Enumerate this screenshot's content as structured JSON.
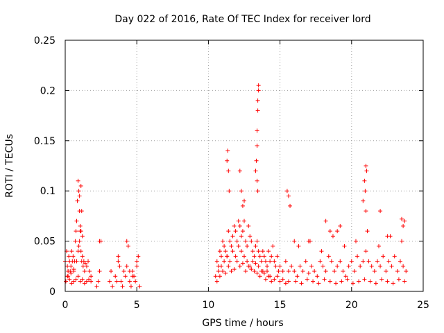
{
  "chart_data": {
    "type": "scatter",
    "title": "Day 022 of 2016, Rate Of TEC Index for receiver lord",
    "xlabel": "GPS time / hours",
    "ylabel": "ROTI / TECUs",
    "xlim": [
      0,
      25
    ],
    "ylim": [
      0,
      0.25
    ],
    "xticks": [
      0,
      5,
      10,
      15,
      20,
      25
    ],
    "xtick_labels": [
      "0",
      "5",
      "10",
      "15",
      "20",
      "25"
    ],
    "yticks": [
      0,
      0.05,
      0.1,
      0.15,
      0.2,
      0.25
    ],
    "ytick_labels": [
      "0",
      "0.05",
      "0.1",
      "0.15",
      "0.2",
      "0.25"
    ],
    "grid": true,
    "marker": "+",
    "series": [
      {
        "name": "ROTI",
        "color": "#ff0000",
        "x": [
          0.0,
          0.1,
          0.15,
          0.2,
          0.25,
          0.3,
          0.35,
          0.4,
          0.45,
          0.5,
          0.55,
          0.6,
          0.65,
          0.7,
          0.75,
          0.8,
          0.85,
          0.9,
          0.95,
          1.0,
          1.05,
          1.1,
          1.15,
          1.2,
          1.25,
          1.3,
          1.35,
          1.4,
          1.5,
          1.6,
          1.7,
          1.8,
          0.05,
          0.15,
          0.3,
          0.45,
          0.6,
          0.75,
          0.9,
          1.05,
          1.2,
          1.35,
          1.5,
          1.65,
          1.8,
          0.2,
          0.4,
          0.6,
          0.8,
          0.95,
          1.0,
          1.05,
          1.1,
          1.15,
          1.2,
          0.2,
          0.9,
          1.0,
          1.1,
          2.2,
          2.3,
          2.4,
          2.5,
          2.4,
          3.1,
          3.2,
          3.3,
          3.5,
          3.6,
          3.7,
          3.8,
          3.9,
          4.0,
          4.1,
          4.2,
          4.3,
          4.4,
          4.5,
          4.6,
          4.7,
          4.8,
          4.9,
          5.0,
          5.1,
          5.2,
          4.3,
          4.5,
          4.7,
          5.0,
          3.7,
          10.5,
          10.6,
          10.7,
          10.8,
          10.9,
          11.0,
          11.1,
          11.2,
          11.3,
          11.4,
          11.5,
          11.6,
          11.7,
          11.8,
          11.9,
          12.0,
          12.1,
          12.2,
          12.3,
          12.4,
          12.5,
          12.6,
          12.7,
          12.8,
          12.9,
          13.0,
          13.1,
          13.2,
          13.3,
          13.4,
          13.5,
          13.6,
          13.7,
          13.8,
          13.9,
          14.0,
          14.1,
          14.2,
          14.3,
          14.4,
          14.5,
          14.6,
          14.7,
          14.8,
          14.9,
          15.0,
          15.2,
          15.4,
          15.6,
          15.8,
          10.6,
          10.8,
          11.0,
          11.2,
          11.4,
          11.6,
          11.8,
          12.0,
          12.2,
          12.4,
          12.6,
          12.8,
          13.0,
          13.2,
          13.4,
          13.6,
          13.8,
          14.0,
          14.2,
          14.4,
          14.6,
          14.8,
          15.0,
          15.2,
          15.4,
          15.6,
          10.7,
          10.9,
          11.1,
          11.3,
          11.5,
          11.7,
          11.9,
          12.1,
          12.3,
          12.5,
          12.7,
          12.9,
          13.1,
          13.3,
          13.5,
          13.7,
          13.9,
          14.1,
          14.3,
          11.3,
          11.35,
          11.4,
          11.45,
          12.2,
          12.3,
          12.4,
          12.5,
          13.3,
          13.35,
          13.4,
          13.45,
          13.5,
          13.4,
          13.45,
          13.5,
          13.4,
          13.45,
          16.0,
          16.2,
          16.4,
          16.6,
          16.8,
          17.0,
          17.2,
          17.4,
          17.6,
          17.8,
          18.0,
          18.2,
          18.4,
          18.6,
          18.8,
          19.0,
          19.2,
          19.4,
          19.6,
          19.8,
          20.0,
          20.2,
          20.4,
          20.6,
          20.8,
          21.0,
          21.2,
          21.4,
          21.6,
          21.8,
          22.0,
          22.2,
          22.4,
          22.6,
          22.8,
          23.0,
          23.2,
          23.4,
          23.6,
          23.8,
          16.1,
          16.5,
          16.9,
          17.3,
          17.7,
          18.1,
          18.5,
          18.9,
          19.3,
          19.7,
          20.1,
          20.5,
          20.9,
          21.3,
          21.7,
          22.1,
          22.5,
          22.9,
          23.3,
          23.7,
          16.3,
          17.1,
          17.9,
          18.7,
          19.5,
          20.3,
          21.1,
          21.9,
          22.7,
          23.5,
          15.5,
          15.6,
          15.7,
          18.2,
          18.5,
          19.2,
          20.8,
          20.9,
          21.0,
          21.05,
          20.95,
          21.0,
          22.0,
          23.5,
          23.6,
          23.7,
          19.0,
          17.0,
          16.0,
          22.5
        ],
        "y": [
          0.03,
          0.04,
          0.025,
          0.02,
          0.035,
          0.03,
          0.02,
          0.025,
          0.04,
          0.03,
          0.035,
          0.02,
          0.03,
          0.05,
          0.06,
          0.07,
          0.09,
          0.11,
          0.1,
          0.08,
          0.06,
          0.04,
          0.03,
          0.035,
          0.025,
          0.03,
          0.02,
          0.028,
          0.025,
          0.03,
          0.02,
          0.015,
          0.01,
          0.015,
          0.012,
          0.008,
          0.01,
          0.012,
          0.015,
          0.01,
          0.012,
          0.008,
          0.01,
          0.012,
          0.01,
          0.02,
          0.018,
          0.022,
          0.03,
          0.045,
          0.05,
          0.065,
          0.105,
          0.08,
          0.055,
          0.015,
          0.04,
          0.095,
          0.06,
          0.005,
          0.01,
          0.05,
          0.05,
          0.02,
          0.01,
          0.02,
          0.005,
          0.015,
          0.01,
          0.035,
          0.025,
          0.01,
          0.005,
          0.02,
          0.015,
          0.05,
          0.045,
          0.01,
          0.005,
          0.02,
          0.015,
          0.01,
          0.03,
          0.035,
          0.005,
          0.025,
          0.02,
          0.015,
          0.025,
          0.03,
          0.015,
          0.03,
          0.025,
          0.04,
          0.035,
          0.05,
          0.045,
          0.04,
          0.035,
          0.06,
          0.05,
          0.045,
          0.055,
          0.065,
          0.06,
          0.05,
          0.07,
          0.065,
          0.055,
          0.06,
          0.07,
          0.05,
          0.045,
          0.065,
          0.055,
          0.05,
          0.04,
          0.035,
          0.045,
          0.05,
          0.04,
          0.035,
          0.03,
          0.04,
          0.035,
          0.03,
          0.025,
          0.04,
          0.03,
          0.035,
          0.045,
          0.03,
          0.025,
          0.035,
          0.02,
          0.025,
          0.02,
          0.03,
          0.02,
          0.025,
          0.01,
          0.015,
          0.02,
          0.018,
          0.025,
          0.02,
          0.022,
          0.03,
          0.025,
          0.028,
          0.02,
          0.025,
          0.022,
          0.02,
          0.018,
          0.015,
          0.02,
          0.012,
          0.015,
          0.01,
          0.012,
          0.015,
          0.01,
          0.012,
          0.008,
          0.01,
          0.02,
          0.025,
          0.03,
          0.035,
          0.03,
          0.04,
          0.035,
          0.045,
          0.04,
          0.035,
          0.03,
          0.025,
          0.03,
          0.028,
          0.025,
          0.02,
          0.018,
          0.02,
          0.015,
          0.13,
          0.14,
          0.12,
          0.1,
          0.12,
          0.1,
          0.085,
          0.09,
          0.12,
          0.13,
          0.16,
          0.18,
          0.2,
          0.145,
          0.19,
          0.205,
          0.11,
          0.1,
          0.02,
          0.015,
          0.025,
          0.02,
          0.03,
          0.018,
          0.025,
          0.02,
          0.015,
          0.03,
          0.025,
          0.02,
          0.035,
          0.03,
          0.02,
          0.025,
          0.03,
          0.02,
          0.015,
          0.025,
          0.03,
          0.02,
          0.035,
          0.025,
          0.03,
          0.04,
          0.03,
          0.025,
          0.02,
          0.03,
          0.025,
          0.035,
          0.02,
          0.03,
          0.025,
          0.035,
          0.02,
          0.03,
          0.025,
          0.02,
          0.01,
          0.008,
          0.012,
          0.01,
          0.008,
          0.012,
          0.01,
          0.008,
          0.01,
          0.012,
          0.008,
          0.01,
          0.012,
          0.01,
          0.008,
          0.012,
          0.01,
          0.008,
          0.012,
          0.01,
          0.045,
          0.05,
          0.04,
          0.055,
          0.045,
          0.05,
          0.06,
          0.045,
          0.055,
          0.05,
          0.1,
          0.095,
          0.085,
          0.07,
          0.06,
          0.065,
          0.09,
          0.11,
          0.125,
          0.12,
          0.1,
          0.08,
          0.08,
          0.072,
          0.065,
          0.07,
          0.06,
          0.05,
          0.05,
          0.055
        ]
      }
    ]
  }
}
